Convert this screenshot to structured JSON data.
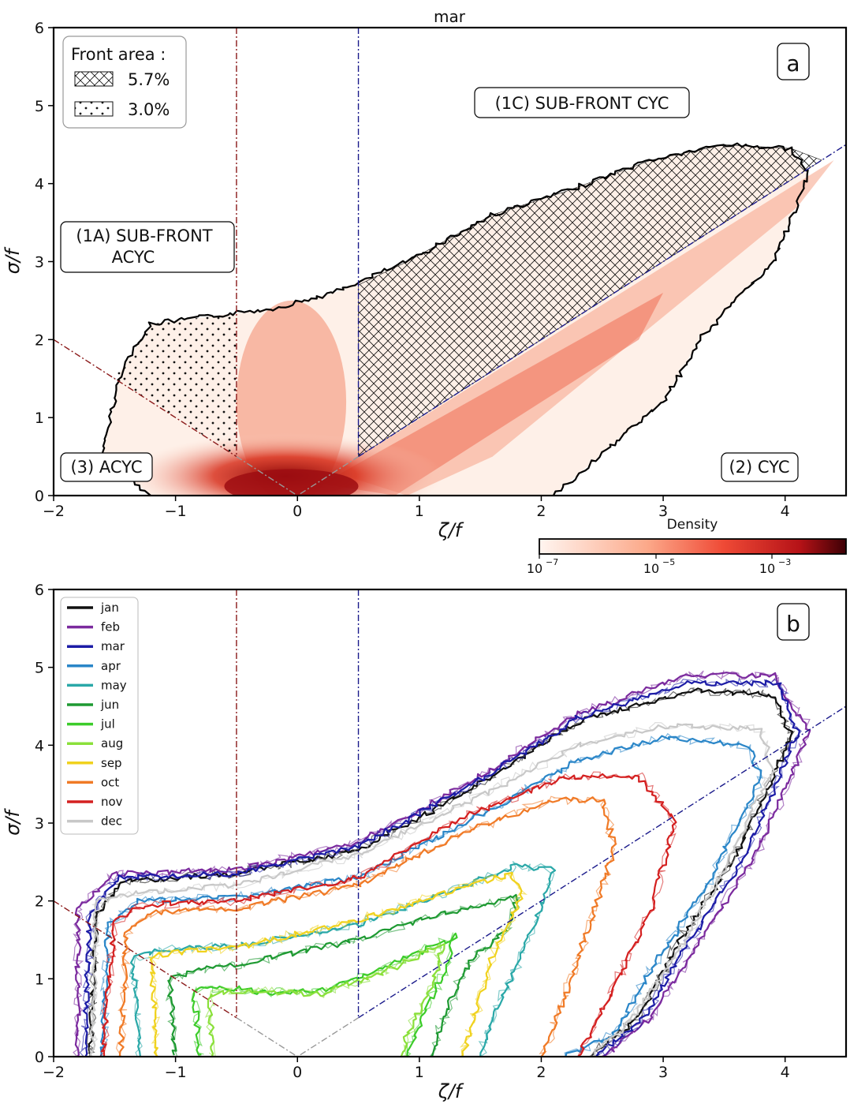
{
  "chart_data": [
    {
      "panel": "a",
      "type": "heatmap",
      "title": "mar",
      "xlabel": "ζ/f",
      "ylabel": "σ/f",
      "xlim": [
        -2,
        4.5
      ],
      "ylim": [
        0,
        6
      ],
      "xticks": [
        "−2",
        "−1",
        "0",
        "1",
        "2",
        "3",
        "4"
      ],
      "yticks": [
        "0",
        "1",
        "2",
        "3",
        "4",
        "5",
        "6"
      ],
      "panel_label": "a",
      "legend": {
        "title": "Front area :",
        "placement": "top-left",
        "entries": [
          {
            "pattern": "crosshatch",
            "label": "5.7%"
          },
          {
            "pattern": "dots",
            "label": "3.0%"
          }
        ]
      },
      "annotations": [
        {
          "text": "(1C) SUB-FRONT CYC"
        },
        {
          "text": "(1A) SUB-FRONT",
          "text2": "ACYC"
        },
        {
          "text": "(3) ACYC"
        },
        {
          "text": "(2) CYC"
        }
      ],
      "colorbar": {
        "label": "Density",
        "scale": "log",
        "ticks": [
          "10",
          "10",
          "10"
        ],
        "tick_exponents": [
          "−7",
          "−5",
          "−3"
        ],
        "range": [
          1e-07,
          0.01
        ]
      },
      "reference_lines": [
        {
          "type": "vertical",
          "x": -0.5,
          "color": "#8b1a1a",
          "style": "dash-dot"
        },
        {
          "type": "vertical",
          "x": 0.5,
          "color": "#1a1a8b",
          "style": "dash-dot"
        },
        {
          "type": "line",
          "from": [
            0.5,
            0.5
          ],
          "to": [
            4.5,
            4.5
          ],
          "color": "#1a1a8b",
          "style": "dash-dot"
        },
        {
          "type": "line",
          "from": [
            -2,
            2
          ],
          "to": [
            -0.5,
            0.5
          ],
          "color": "#8b1a1a",
          "style": "dash-dot"
        },
        {
          "type": "line",
          "from": [
            -0.5,
            0.5
          ],
          "to": [
            0.5,
            0.5
          ],
          "color": "#999999",
          "style": "dash-dot",
          "via": [
            0,
            0
          ]
        }
      ],
      "density_contour_outline": [
        [
          -1.2,
          0
        ],
        [
          -1.6,
          0.5
        ],
        [
          -1.45,
          1.6
        ],
        [
          -1.2,
          2.2
        ],
        [
          -0.7,
          2.3
        ],
        [
          -0.2,
          2.4
        ],
        [
          0.3,
          2.6
        ],
        [
          0.9,
          3.0
        ],
        [
          1.6,
          3.6
        ],
        [
          2.2,
          3.9
        ],
        [
          2.9,
          4.3
        ],
        [
          3.5,
          4.5
        ],
        [
          4.05,
          4.45
        ],
        [
          4.2,
          4.1
        ],
        [
          3.9,
          3.0
        ],
        [
          3.3,
          2.0
        ],
        [
          3.0,
          1.2
        ],
        [
          2.4,
          0.4
        ],
        [
          2.1,
          0
        ]
      ],
      "hatched_regions": [
        {
          "pattern": "crosshatch",
          "area": "5.7%"
        },
        {
          "pattern": "dots",
          "area": "3.0%"
        }
      ]
    },
    {
      "panel": "b",
      "type": "line",
      "xlabel": "ζ/f",
      "ylabel": "σ/f",
      "xlim": [
        -2,
        4.5
      ],
      "ylim": [
        0,
        6
      ],
      "xticks": [
        "−2",
        "−1",
        "0",
        "1",
        "2",
        "3",
        "4"
      ],
      "yticks": [
        "0",
        "1",
        "2",
        "3",
        "4",
        "5",
        "6"
      ],
      "panel_label": "b",
      "legend_placement": "top-left",
      "series": [
        {
          "name": "jan",
          "color": "#111111",
          "outer": [
            [
              -1.7,
              0
            ],
            [
              -1.65,
              1.8
            ],
            [
              -1.45,
              2.25
            ],
            [
              -0.5,
              2.35
            ],
            [
              0.5,
              2.65
            ],
            [
              1.5,
              3.5
            ],
            [
              2.3,
              4.3
            ],
            [
              3.2,
              4.7
            ],
            [
              3.9,
              4.65
            ],
            [
              4.05,
              4.1
            ],
            [
              3.6,
              2.6
            ],
            [
              3.1,
              1.4
            ],
            [
              2.8,
              0.5
            ],
            [
              2.4,
              0
            ]
          ]
        },
        {
          "name": "feb",
          "color": "#7b2a9e",
          "outer": [
            [
              -1.8,
              0
            ],
            [
              -1.8,
              1.9
            ],
            [
              -1.5,
              2.35
            ],
            [
              -0.5,
              2.4
            ],
            [
              0.5,
              2.75
            ],
            [
              1.5,
              3.6
            ],
            [
              2.3,
              4.4
            ],
            [
              3.2,
              4.9
            ],
            [
              3.9,
              4.9
            ],
            [
              4.2,
              4.2
            ],
            [
              3.8,
              2.7
            ],
            [
              3.3,
              1.5
            ],
            [
              2.9,
              0.5
            ],
            [
              2.5,
              0
            ]
          ]
        },
        {
          "name": "mar",
          "color": "#1c1ca6",
          "outer": [
            [
              -1.75,
              0
            ],
            [
              -1.7,
              1.85
            ],
            [
              -1.45,
              2.3
            ],
            [
              -0.5,
              2.35
            ],
            [
              0.5,
              2.7
            ],
            [
              1.5,
              3.55
            ],
            [
              2.3,
              4.35
            ],
            [
              3.2,
              4.8
            ],
            [
              3.95,
              4.8
            ],
            [
              4.1,
              4.15
            ],
            [
              3.7,
              2.65
            ],
            [
              3.2,
              1.45
            ],
            [
              2.85,
              0.5
            ],
            [
              2.45,
              0
            ]
          ]
        },
        {
          "name": "apr",
          "color": "#2a86c8",
          "outer": [
            [
              -1.6,
              0
            ],
            [
              -1.55,
              1.7
            ],
            [
              -1.3,
              2.0
            ],
            [
              -0.5,
              2.05
            ],
            [
              0.5,
              2.3
            ],
            [
              1.5,
              3.1
            ],
            [
              2.3,
              3.8
            ],
            [
              3.0,
              4.1
            ],
            [
              3.7,
              4.0
            ],
            [
              3.8,
              3.6
            ],
            [
              3.4,
              2.3
            ],
            [
              2.9,
              1.1
            ],
            [
              2.6,
              0.3
            ],
            [
              2.2,
              0
            ]
          ]
        },
        {
          "name": "may",
          "color": "#2aa8a8",
          "outer": [
            [
              -1.3,
              0
            ],
            [
              -1.35,
              1.25
            ],
            [
              -1.1,
              1.38
            ],
            [
              -0.5,
              1.42
            ],
            [
              0.5,
              1.7
            ],
            [
              1.2,
              2.1
            ],
            [
              1.8,
              2.45
            ],
            [
              2.1,
              2.4
            ],
            [
              2.0,
              1.9
            ],
            [
              1.8,
              1.2
            ],
            [
              1.6,
              0.5
            ],
            [
              1.5,
              0
            ]
          ]
        },
        {
          "name": "jun",
          "color": "#1e9a32",
          "outer": [
            [
              -1.0,
              0
            ],
            [
              -1.05,
              1.0
            ],
            [
              -0.8,
              1.12
            ],
            [
              -0.5,
              1.18
            ],
            [
              0.5,
              1.5
            ],
            [
              1.1,
              1.8
            ],
            [
              1.8,
              2.05
            ],
            [
              1.75,
              1.7
            ],
            [
              1.4,
              1.2
            ],
            [
              1.2,
              0.5
            ],
            [
              1.1,
              0
            ]
          ]
        },
        {
          "name": "jul",
          "color": "#3ccc2a",
          "outer": [
            [
              -0.8,
              0
            ],
            [
              -0.85,
              0.85
            ],
            [
              -0.6,
              0.9
            ],
            [
              -0.3,
              0.82
            ],
            [
              0.2,
              0.85
            ],
            [
              0.8,
              1.2
            ],
            [
              1.3,
              1.55
            ],
            [
              1.2,
              1.1
            ],
            [
              1.0,
              0.4
            ],
            [
              0.9,
              0
            ]
          ]
        },
        {
          "name": "aug",
          "color": "#8ae03a",
          "outer": [
            [
              -0.7,
              0
            ],
            [
              -0.72,
              0.8
            ],
            [
              -0.4,
              0.85
            ],
            [
              0.2,
              0.8
            ],
            [
              0.8,
              1.15
            ],
            [
              1.2,
              1.45
            ],
            [
              1.1,
              0.9
            ],
            [
              0.9,
              0.3
            ],
            [
              0.85,
              0
            ]
          ]
        },
        {
          "name": "sep",
          "color": "#f0d21e",
          "outer": [
            [
              -1.15,
              0
            ],
            [
              -1.2,
              1.3
            ],
            [
              -0.9,
              1.35
            ],
            [
              -0.5,
              1.4
            ],
            [
              0.5,
              1.75
            ],
            [
              1.2,
              2.1
            ],
            [
              1.75,
              2.35
            ],
            [
              1.85,
              2.1
            ],
            [
              1.6,
              1.3
            ],
            [
              1.45,
              0.5
            ],
            [
              1.35,
              0
            ]
          ]
        },
        {
          "name": "oct",
          "color": "#f07a26",
          "outer": [
            [
              -1.45,
              0
            ],
            [
              -1.4,
              1.6
            ],
            [
              -1.2,
              1.85
            ],
            [
              -0.5,
              1.9
            ],
            [
              0.5,
              2.2
            ],
            [
              1.4,
              2.9
            ],
            [
              2.1,
              3.3
            ],
            [
              2.5,
              3.3
            ],
            [
              2.6,
              2.7
            ],
            [
              2.4,
              1.7
            ],
            [
              2.2,
              0.8
            ],
            [
              2.0,
              0
            ]
          ]
        },
        {
          "name": "nov",
          "color": "#d42020",
          "outer": [
            [
              -1.6,
              0
            ],
            [
              -1.5,
              1.75
            ],
            [
              -1.25,
              1.95
            ],
            [
              -0.5,
              2.0
            ],
            [
              0.5,
              2.3
            ],
            [
              1.4,
              3.1
            ],
            [
              2.2,
              3.6
            ],
            [
              2.8,
              3.6
            ],
            [
              3.1,
              3.0
            ],
            [
              2.9,
              1.9
            ],
            [
              2.6,
              0.9
            ],
            [
              2.3,
              0
            ]
          ]
        },
        {
          "name": "dec",
          "color": "#c8c8c8",
          "outer": [
            [
              -1.68,
              0
            ],
            [
              -1.65,
              2.0
            ],
            [
              -1.3,
              2.1
            ],
            [
              -0.5,
              2.2
            ],
            [
              0.5,
              2.6
            ],
            [
              1.5,
              3.35
            ],
            [
              2.3,
              4.0
            ],
            [
              3.0,
              4.25
            ],
            [
              3.8,
              4.2
            ],
            [
              3.9,
              3.7
            ],
            [
              3.5,
              2.4
            ],
            [
              3.1,
              1.3
            ],
            [
              2.7,
              0.4
            ],
            [
              2.4,
              0
            ]
          ]
        }
      ],
      "reference_lines": [
        {
          "type": "vertical",
          "x": -0.5,
          "color": "#8b1a1a",
          "style": "dash-dot"
        },
        {
          "type": "vertical",
          "x": 0.5,
          "color": "#1a1a8b",
          "style": "dash-dot"
        },
        {
          "type": "line",
          "from": [
            0.5,
            0.5
          ],
          "to": [
            4.5,
            4.5
          ],
          "color": "#1a1a8b",
          "style": "dash-dot"
        },
        {
          "type": "line",
          "from": [
            -2,
            2
          ],
          "to": [
            -0.5,
            0.5
          ],
          "color": "#8b1a1a",
          "style": "dash-dot"
        },
        {
          "type": "line",
          "from": [
            -0.5,
            0.5
          ],
          "to": [
            0.5,
            0.5
          ],
          "color": "#999999",
          "style": "dash-dot",
          "via": [
            0,
            0
          ]
        }
      ]
    }
  ]
}
